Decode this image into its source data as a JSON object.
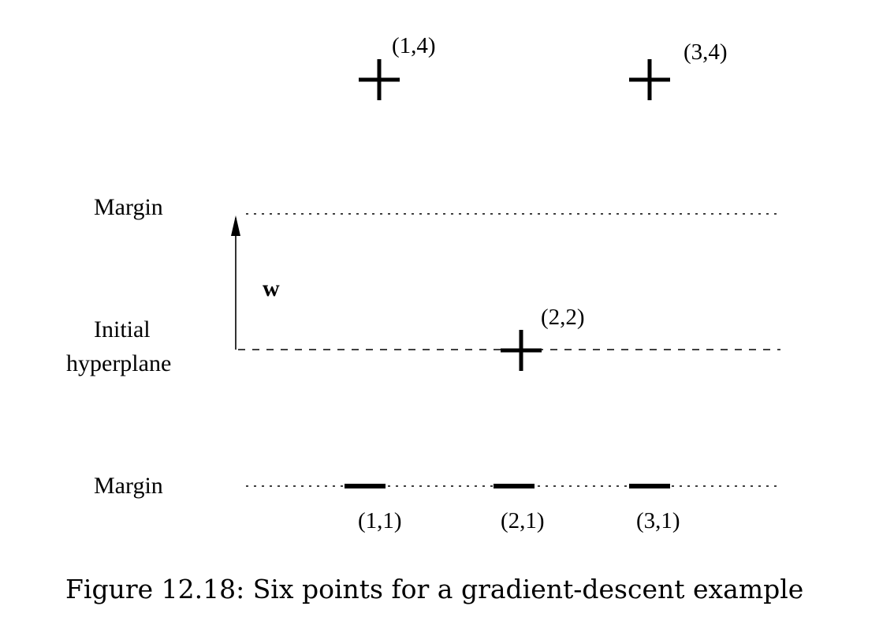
{
  "labels": {
    "margin_top": "Margin",
    "initial_line1": "Initial",
    "initial_line2": "hyperplane",
    "margin_bottom": "Margin",
    "weight_vector": "w"
  },
  "positive_points": [
    {
      "label": "(1,4)"
    },
    {
      "label": "(3,4)"
    },
    {
      "label": "(2,2)"
    }
  ],
  "negative_points": [
    {
      "label": "(1,1)"
    },
    {
      "label": "(2,1)"
    },
    {
      "label": "(3,1)"
    }
  ],
  "caption": "Figure 12.18: Six points for a gradient-descent example"
}
